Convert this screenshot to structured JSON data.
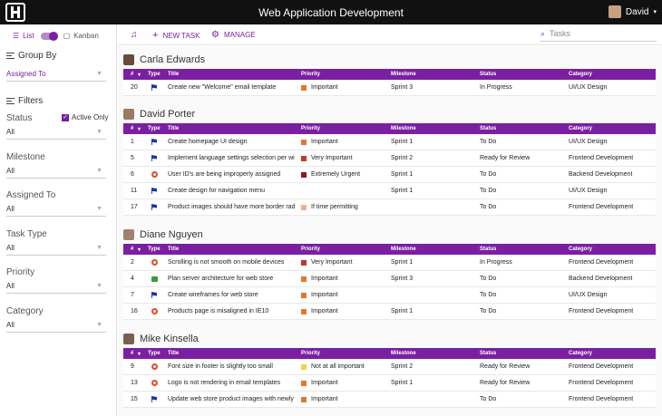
{
  "app": {
    "title": "Web Application Development",
    "user": "David"
  },
  "sidebar": {
    "list": "List",
    "kanban": "Kanban",
    "group_by": "Group By",
    "group_value": "Assigned To",
    "filters": "Filters",
    "active_only": "Active Only",
    "filters_list": [
      {
        "label": "Status",
        "value": "All"
      },
      {
        "label": "Milestone",
        "value": "All"
      },
      {
        "label": "Assigned To",
        "value": "All"
      },
      {
        "label": "Task Type",
        "value": "All"
      },
      {
        "label": "Priority",
        "value": "All"
      },
      {
        "label": "Category",
        "value": "All"
      }
    ]
  },
  "toolbar": {
    "new_task": "NEW TASK",
    "manage": "MANAGE",
    "search_placeholder": "Tasks"
  },
  "columns": {
    "num": "#",
    "type": "Type",
    "title": "Title",
    "priority": "Priority",
    "milestone": "Milestone",
    "status": "Status",
    "category": "Category"
  },
  "colors": {
    "accent": "#7b1fa2",
    "important": "#e07a30",
    "very_important": "#c0392b",
    "extremely_urgent": "#8b1a1a",
    "if_time": "#e8b090",
    "not_important": "#f0d34a"
  },
  "groups": [
    {
      "name": "Carla Edwards",
      "rows": [
        {
          "num": "20",
          "type": "feature",
          "title": "Create new \"Welcome\" email template",
          "priority": "Important",
          "pcolor": "#e07a30",
          "milestone": "Sprint 3",
          "status": "In Progress",
          "category": "UI/UX Design"
        }
      ]
    },
    {
      "name": "David Porter",
      "rows": [
        {
          "num": "1",
          "type": "feature",
          "title": "Create homepage UI design",
          "priority": "Important",
          "pcolor": "#e07a30",
          "milestone": "Sprint 1",
          "status": "To Do",
          "category": "UI/UX Design"
        },
        {
          "num": "5",
          "type": "feature",
          "title": "Implement language settings selection per wi...",
          "priority": "Very Important",
          "pcolor": "#c0392b",
          "milestone": "Sprint 2",
          "status": "Ready for Review",
          "category": "Frontend Development"
        },
        {
          "num": "6",
          "type": "bug",
          "title": "User ID's are being improperly assigned",
          "priority": "Extremely Urgent",
          "pcolor": "#8b1a1a",
          "milestone": "Sprint 1",
          "status": "To Do",
          "category": "Backend Development"
        },
        {
          "num": "11",
          "type": "feature",
          "title": "Create design for navigation menu",
          "priority": "",
          "pcolor": "",
          "milestone": "Sprint 1",
          "status": "To Do",
          "category": "UI/UX Design"
        },
        {
          "num": "17",
          "type": "feature",
          "title": "Product images should have more border radi...",
          "priority": "If time permitting",
          "pcolor": "#e8b090",
          "milestone": "",
          "status": "To Do",
          "category": "Frontend Development"
        }
      ]
    },
    {
      "name": "Diane Nguyen",
      "rows": [
        {
          "num": "2",
          "type": "bug",
          "title": "Scrolling is not smooth on mobile devices",
          "priority": "Very Important",
          "pcolor": "#c0392b",
          "milestone": "Sprint 1",
          "status": "In Progress",
          "category": "Frontend Development"
        },
        {
          "num": "4",
          "type": "story",
          "title": "Plan server architecture for web store",
          "priority": "Important",
          "pcolor": "#e07a30",
          "milestone": "Sprint 3",
          "status": "To Do",
          "category": "Backend Development"
        },
        {
          "num": "7",
          "type": "feature",
          "title": "Create wireframes for web store",
          "priority": "Important",
          "pcolor": "#e07a30",
          "milestone": "",
          "status": "To Do",
          "category": "UI/UX Design"
        },
        {
          "num": "16",
          "type": "bug",
          "title": "Products page is misaligned in IE10",
          "priority": "Important",
          "pcolor": "#e07a30",
          "milestone": "Sprint 1",
          "status": "To Do",
          "category": "Frontend Development"
        }
      ]
    },
    {
      "name": "Mike Kinsella",
      "rows": [
        {
          "num": "9",
          "type": "bug",
          "title": "Font size in footer is slightly too small",
          "priority": "Not at all important",
          "pcolor": "#f0d34a",
          "milestone": "Sprint 2",
          "status": "Ready for Review",
          "category": "Frontend Development"
        },
        {
          "num": "13",
          "type": "bug",
          "title": "Logo is not rendering in email templates",
          "priority": "Important",
          "pcolor": "#e07a30",
          "milestone": "Sprint 1",
          "status": "Ready for Review",
          "category": "Frontend Development"
        },
        {
          "num": "15",
          "type": "feature",
          "title": "Update web store product images with newly ...",
          "priority": "Important",
          "pcolor": "#e07a30",
          "milestone": "",
          "status": "To Do",
          "category": "Frontend Development"
        }
      ]
    }
  ]
}
